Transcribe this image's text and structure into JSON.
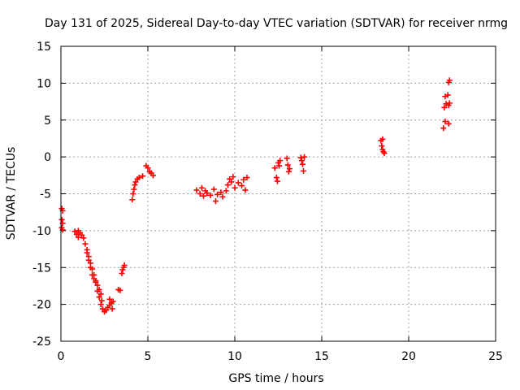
{
  "chart_data": {
    "type": "scatter",
    "title": "Day 131 of 2025, Sidereal Day-to-day VTEC variation (SDTVAR) for receiver nrmg",
    "xlabel": "GPS time / hours",
    "ylabel": "SDTVAR / TECUs",
    "xlim": [
      0,
      25
    ],
    "ylim": [
      -25,
      15
    ],
    "xticks": [
      0,
      5,
      10,
      15,
      20,
      25
    ],
    "yticks": [
      -25,
      -20,
      -15,
      -10,
      -5,
      0,
      5,
      10,
      15
    ],
    "grid": true,
    "marker": "plus",
    "colors": {
      "points": "#ff0000",
      "grid": "#a0a0a0",
      "frame": "#000000"
    },
    "series": [
      {
        "values": [
          [
            0.05,
            -7.0
          ],
          [
            0.1,
            -7.3
          ],
          [
            0.05,
            -8.5
          ],
          [
            0.1,
            -9.0
          ],
          [
            0.05,
            -9.6
          ],
          [
            0.1,
            -9.9
          ],
          [
            0.8,
            -10.1
          ],
          [
            0.9,
            -10.5
          ],
          [
            1.0,
            -10.9
          ],
          [
            1.1,
            -10.3
          ],
          [
            1.2,
            -10.6
          ],
          [
            1.0,
            -10.0
          ],
          [
            1.3,
            -11.0
          ],
          [
            1.4,
            -11.8
          ],
          [
            1.5,
            -12.6
          ],
          [
            1.6,
            -13.5
          ],
          [
            1.7,
            -14.4
          ],
          [
            1.8,
            -15.2
          ],
          [
            1.9,
            -16.0
          ],
          [
            2.0,
            -16.8
          ],
          [
            2.1,
            -17.4
          ],
          [
            2.2,
            -18.0
          ],
          [
            2.3,
            -18.6
          ],
          [
            2.35,
            -19.5
          ],
          [
            1.5,
            -13.0
          ],
          [
            1.6,
            -14.0
          ],
          [
            1.7,
            -15.0
          ],
          [
            1.8,
            -16.0
          ],
          [
            1.9,
            -16.5
          ],
          [
            2.0,
            -17.0
          ],
          [
            2.1,
            -18.2
          ],
          [
            2.2,
            -19.0
          ],
          [
            2.3,
            -20.0
          ],
          [
            2.4,
            -20.6
          ],
          [
            2.5,
            -21.0
          ],
          [
            2.6,
            -20.8
          ],
          [
            2.7,
            -20.4
          ],
          [
            2.8,
            -20.1
          ],
          [
            2.9,
            -19.8
          ],
          [
            3.0,
            -19.6
          ],
          [
            2.8,
            -19.3
          ],
          [
            2.95,
            -20.6
          ],
          [
            3.3,
            -18.0
          ],
          [
            3.4,
            -18.1
          ],
          [
            3.5,
            -15.8
          ],
          [
            3.55,
            -15.3
          ],
          [
            3.6,
            -15.0
          ],
          [
            3.65,
            -14.7
          ],
          [
            4.1,
            -5.8
          ],
          [
            4.15,
            -5.0
          ],
          [
            4.2,
            -4.4
          ],
          [
            4.25,
            -3.8
          ],
          [
            4.3,
            -3.4
          ],
          [
            4.4,
            -3.0
          ],
          [
            4.5,
            -2.8
          ],
          [
            4.7,
            -2.6
          ],
          [
            4.9,
            -1.2
          ],
          [
            5.0,
            -1.5
          ],
          [
            5.1,
            -2.0
          ],
          [
            5.2,
            -2.2
          ],
          [
            5.3,
            -2.5
          ],
          [
            7.8,
            -4.5
          ],
          [
            8.0,
            -5.0
          ],
          [
            8.1,
            -4.2
          ],
          [
            8.2,
            -5.3
          ],
          [
            8.3,
            -4.6
          ],
          [
            8.4,
            -4.9
          ],
          [
            8.6,
            -5.2
          ],
          [
            8.8,
            -4.4
          ],
          [
            8.9,
            -6.0
          ],
          [
            9.0,
            -5.1
          ],
          [
            9.2,
            -4.8
          ],
          [
            9.3,
            -5.4
          ],
          [
            9.5,
            -4.6
          ],
          [
            9.6,
            -3.8
          ],
          [
            9.7,
            -3.0
          ],
          [
            9.8,
            -3.4
          ],
          [
            9.9,
            -2.7
          ],
          [
            10.0,
            -4.2
          ],
          [
            10.2,
            -3.5
          ],
          [
            10.4,
            -3.9
          ],
          [
            10.5,
            -3.1
          ],
          [
            10.6,
            -4.5
          ],
          [
            10.7,
            -2.8
          ],
          [
            12.3,
            -1.5
          ],
          [
            12.4,
            -2.8
          ],
          [
            12.45,
            -3.3
          ],
          [
            12.5,
            -0.8
          ],
          [
            12.55,
            -1.2
          ],
          [
            12.6,
            -0.5
          ],
          [
            13.0,
            -0.2
          ],
          [
            13.05,
            -1.1
          ],
          [
            13.1,
            -2.0
          ],
          [
            13.15,
            -1.6
          ],
          [
            13.8,
            -0.1
          ],
          [
            13.85,
            -0.5
          ],
          [
            13.9,
            -1.0
          ],
          [
            13.95,
            -1.9
          ],
          [
            14.0,
            0.0
          ],
          [
            18.4,
            2.2
          ],
          [
            18.45,
            1.5
          ],
          [
            18.5,
            1.0
          ],
          [
            18.55,
            0.7
          ],
          [
            18.6,
            0.5
          ],
          [
            18.5,
            2.4
          ],
          [
            22.0,
            3.9
          ],
          [
            22.1,
            4.8
          ],
          [
            22.3,
            4.5
          ],
          [
            22.05,
            6.7
          ],
          [
            22.15,
            7.2
          ],
          [
            22.3,
            7.0
          ],
          [
            22.1,
            8.2
          ],
          [
            22.25,
            8.4
          ],
          [
            22.35,
            7.3
          ],
          [
            22.3,
            10.1
          ],
          [
            22.35,
            10.4
          ]
        ]
      }
    ]
  }
}
